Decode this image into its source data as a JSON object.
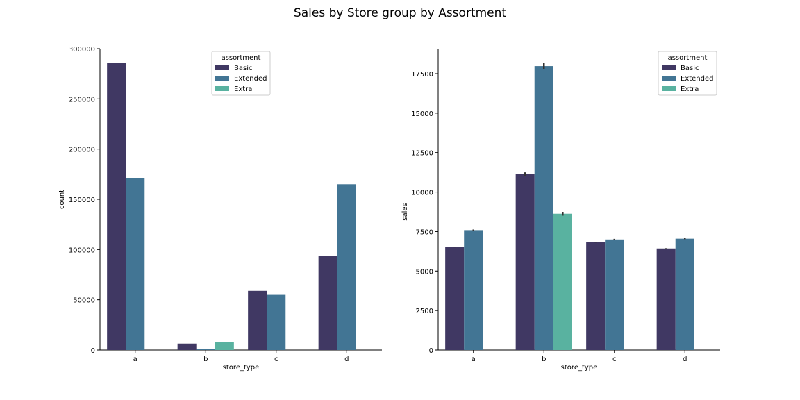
{
  "figure": {
    "title": "Sales by Store group by Assortment"
  },
  "palette": {
    "Basic": "#403863",
    "Extended": "#427594",
    "Extra": "#59b2a0",
    "errorbar": "#333333",
    "axis": "#000000"
  },
  "chart_data": [
    {
      "type": "bar",
      "title": "",
      "xlabel": "store_type",
      "ylabel": "count",
      "categories": [
        "a",
        "b",
        "c",
        "d"
      ],
      "ylim": [
        0,
        300000
      ],
      "yticks": [
        0,
        50000,
        100000,
        150000,
        200000,
        250000,
        300000
      ],
      "ytick_labels": [
        "0",
        "50000",
        "100000",
        "150000",
        "200000",
        "250000",
        "300000"
      ],
      "legend": {
        "title": "assortment",
        "placement": "top-center",
        "entries": [
          "Basic",
          "Extended",
          "Extra"
        ]
      },
      "series": [
        {
          "name": "Basic",
          "values": [
            286000,
            6400,
            58900,
            93800
          ]
        },
        {
          "name": "Extended",
          "values": [
            171000,
            900,
            54900,
            165000
          ]
        },
        {
          "name": "Extra",
          "values": [
            null,
            8200,
            null,
            null
          ]
        }
      ]
    },
    {
      "type": "bar",
      "title": "",
      "xlabel": "store_type",
      "ylabel": "sales",
      "categories": [
        "a",
        "b",
        "c",
        "d"
      ],
      "ylim": [
        0,
        19000
      ],
      "yticks": [
        0,
        2500,
        5000,
        7500,
        10000,
        12500,
        15000,
        17500
      ],
      "ytick_labels": [
        "0",
        "2500",
        "5000",
        "7500",
        "10000",
        "12500",
        "15000",
        "17500"
      ],
      "legend": {
        "title": "assortment",
        "placement": "top-right",
        "entries": [
          "Basic",
          "Extended",
          "Extra"
        ]
      },
      "series": [
        {
          "name": "Basic",
          "values": [
            6520,
            11130,
            6820,
            6430
          ],
          "error": [
            20,
            120,
            20,
            20
          ]
        },
        {
          "name": "Extended",
          "values": [
            7590,
            17980,
            7000,
            7050
          ],
          "error": [
            40,
            200,
            40,
            30
          ]
        },
        {
          "name": "Extra",
          "values": [
            null,
            8630,
            null,
            null
          ],
          "error": [
            null,
            120,
            null,
            null
          ]
        }
      ]
    }
  ]
}
